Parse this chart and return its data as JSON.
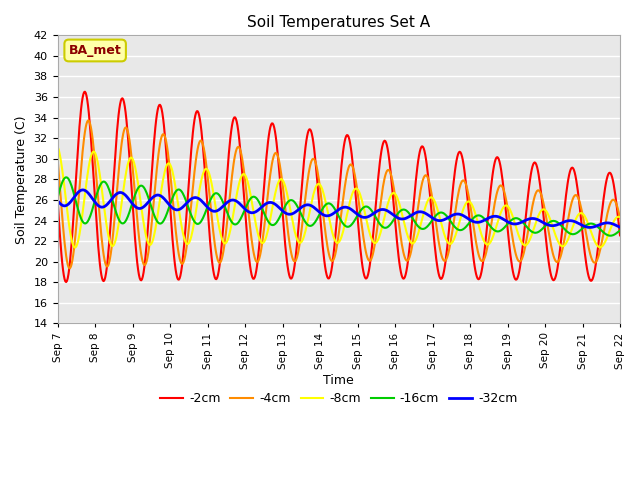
{
  "title": "Soil Temperatures Set A",
  "xlabel": "Time",
  "ylabel": "Soil Temperature (C)",
  "ylim": [
    14,
    42
  ],
  "background_color": "#e8e8e8",
  "plot_bg_color": "#e8e8e8",
  "grid_color": "white",
  "annotation_text": "BA_met",
  "annotation_color": "#8b0000",
  "annotation_bg": "#ffffaa",
  "legend_entries": [
    "-2cm",
    "-4cm",
    "-8cm",
    "-16cm",
    "-32cm"
  ],
  "line_colors": [
    "#ff0000",
    "#ff8c00",
    "#ffff00",
    "#00cc00",
    "#0000ff"
  ],
  "line_widths": [
    1.5,
    1.5,
    1.5,
    1.5,
    2.0
  ],
  "xtick_labels": [
    "Sep 7",
    "Sep 8",
    "Sep 9",
    "Sep 10",
    "Sep 11",
    "Sep 12",
    "Sep 13",
    "Sep 14",
    "Sep 15",
    "Sep 16",
    "Sep 17",
    "Sep 18",
    "Sep 19",
    "Sep 20",
    "Sep 21",
    "Sep 22"
  ],
  "n_days": 15,
  "points_per_day": 48,
  "depth_params": {
    "neg2": {
      "base_mean": 27.5,
      "amplitude": 9.5,
      "phase": 3.0,
      "mean_decay": 0.28,
      "amp_decay": 0.04
    },
    "neg4": {
      "base_mean": 26.8,
      "amplitude": 7.5,
      "phase": 3.6,
      "mean_decay": 0.26,
      "amp_decay": 0.06
    },
    "neg8": {
      "base_mean": 26.3,
      "amplitude": 5.0,
      "phase": 4.5,
      "mean_decay": 0.23,
      "amp_decay": 0.08
    },
    "neg16": {
      "base_mean": 26.0,
      "amplitude": 2.3,
      "phase": 6.2,
      "mean_decay": 0.2,
      "amp_decay": 0.1
    },
    "neg32": {
      "base_mean": 26.3,
      "amplitude": 0.85,
      "phase": 9.0,
      "mean_decay": 0.19,
      "amp_decay": 0.08
    }
  }
}
